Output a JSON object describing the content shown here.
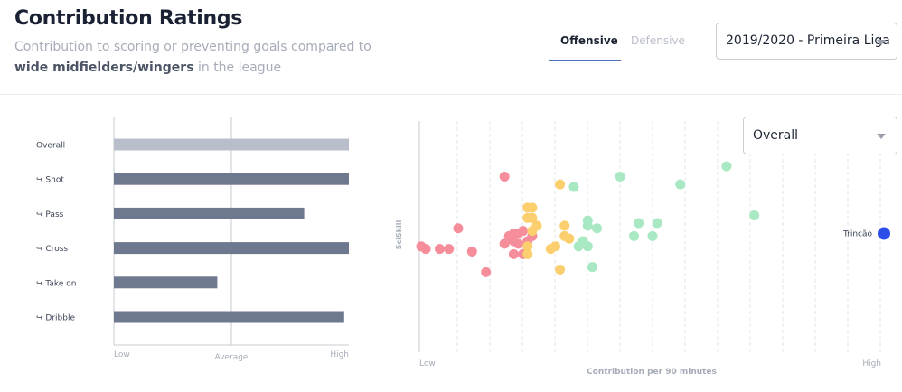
{
  "header": {
    "title": "Contribution Ratings",
    "subtitle_pre": "Contribution to scoring or preventing goals compared to",
    "subtitle_bold": "wide midfielders/wingers",
    "subtitle_post": " in the league"
  },
  "tabs": [
    {
      "label": "Offensive",
      "active": true
    },
    {
      "label": "Defensive",
      "active": false
    }
  ],
  "season_select": {
    "value": "2019/2020 - Primeira Liga"
  },
  "scatter_select": {
    "value": "Overall"
  },
  "colors": {
    "overall_bar": "#b8bfcb",
    "bar": "#6e788f",
    "red": "#f58d9b",
    "yellow": "#fbcf6d",
    "green": "#a8e8c2",
    "highlight": "#2c4ee8"
  },
  "chart_data": [
    {
      "type": "bar",
      "orientation": "horizontal",
      "categories": [
        "Overall",
        "↪ Shot",
        "↪ Pass",
        "↪ Cross",
        "↪ Take on",
        "↪ Dribble"
      ],
      "values": [
        1.0,
        1.0,
        0.81,
        1.0,
        0.44,
        0.98
      ],
      "xlim": [
        0,
        1
      ],
      "average": 0.5,
      "x_tick_labels": {
        "low": "Low",
        "mid": "Average",
        "high": "High"
      }
    },
    {
      "type": "scatter",
      "xlabel": "Contribution per 90 minutes",
      "ylabel": "SciSkill",
      "x_tick_labels": {
        "low": "Low",
        "high": "High"
      },
      "xlim": [
        0,
        1
      ],
      "ylim": [
        0,
        1
      ],
      "groups": [
        {
          "color_key": "red",
          "points": [
            [
              0.0,
              0.34
            ],
            [
              0.01,
              0.33
            ],
            [
              0.04,
              0.33
            ],
            [
              0.06,
              0.33
            ],
            [
              0.08,
              0.41
            ],
            [
              0.11,
              0.32
            ],
            [
              0.14,
              0.24
            ],
            [
              0.18,
              0.61
            ],
            [
              0.18,
              0.35
            ],
            [
              0.19,
              0.38
            ],
            [
              0.2,
              0.39
            ],
            [
              0.2,
              0.36
            ],
            [
              0.21,
              0.39
            ],
            [
              0.21,
              0.35
            ],
            [
              0.2,
              0.31
            ],
            [
              0.22,
              0.4
            ],
            [
              0.23,
              0.36
            ],
            [
              0.22,
              0.31
            ],
            [
              0.24,
              0.38
            ]
          ]
        },
        {
          "color_key": "yellow",
          "points": [
            [
              0.23,
              0.49
            ],
            [
              0.24,
              0.49
            ],
            [
              0.23,
              0.45
            ],
            [
              0.24,
              0.45
            ],
            [
              0.25,
              0.42
            ],
            [
              0.24,
              0.4
            ],
            [
              0.23,
              0.34
            ],
            [
              0.23,
              0.31
            ],
            [
              0.28,
              0.33
            ],
            [
              0.29,
              0.34
            ],
            [
              0.3,
              0.58
            ],
            [
              0.31,
              0.42
            ],
            [
              0.31,
              0.38
            ],
            [
              0.32,
              0.37
            ],
            [
              0.3,
              0.25
            ]
          ]
        },
        {
          "color_key": "green",
          "points": [
            [
              0.33,
              0.57
            ],
            [
              0.35,
              0.36
            ],
            [
              0.34,
              0.34
            ],
            [
              0.36,
              0.34
            ],
            [
              0.36,
              0.44
            ],
            [
              0.36,
              0.42
            ],
            [
              0.38,
              0.41
            ],
            [
              0.37,
              0.26
            ],
            [
              0.43,
              0.61
            ],
            [
              0.46,
              0.38
            ],
            [
              0.47,
              0.43
            ],
            [
              0.5,
              0.38
            ],
            [
              0.51,
              0.43
            ],
            [
              0.56,
              0.58
            ],
            [
              0.66,
              0.65
            ],
            [
              0.72,
              0.46
            ]
          ]
        },
        {
          "color_key": "highlight",
          "label": "Trincão",
          "points": [
            [
              1.0,
              0.39
            ]
          ]
        }
      ]
    }
  ]
}
